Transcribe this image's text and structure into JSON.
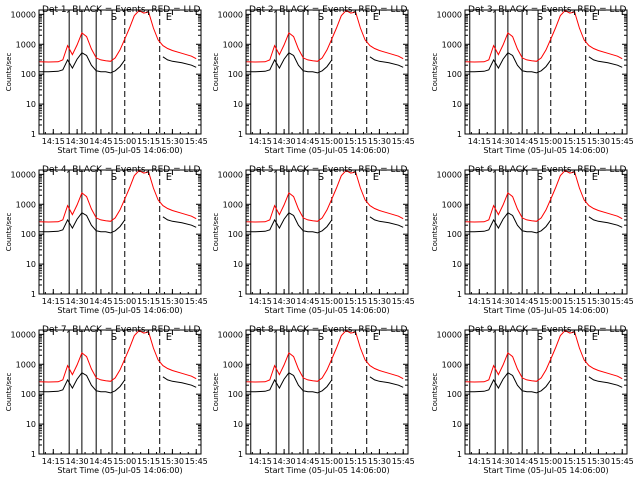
{
  "colors": {
    "background": "#ffffff",
    "events": "#000000",
    "lld": "#ff0000",
    "axes": "#000000"
  },
  "layout": {
    "rows": 3,
    "cols": 3
  },
  "panel_titles": [
    "Det 1, BLACK = Events, RED = LLD",
    "Det 2, BLACK = Events, RED = LLD",
    "Det 3, BLACK = Events, RED = LLD",
    "Det 4, BLACK = Events, RED = LLD",
    "Det 5, BLACK = Events, RED = LLD",
    "Det 6, BLACK = Events, RED = LLD",
    "Det 7, BLACK = Events, RED = LLD",
    "Det 8, BLACK = Events, RED = LLD",
    "Det 9, BLACK = Events, RED = LLD"
  ],
  "xlabel": "Start Time (05-Jul-05 14:06:00)",
  "ylabel": "Counts/sec",
  "x_tick_labels": [
    "14:15",
    "14:30",
    "14:45",
    "15:00",
    "15:15",
    "15:30",
    "15:45"
  ],
  "y_tick_labels": [
    "1",
    "10",
    "100",
    "1000",
    "10000"
  ],
  "markers": {
    "s": "S",
    "e": "E"
  },
  "chart_data": {
    "type": "line",
    "y_scale": "log",
    "xlim": [
      "14:06",
      "15:48"
    ],
    "ylim": [
      1,
      14000
    ],
    "grid": false,
    "solid_vlines": [
      "14:09",
      "14:25",
      "14:33",
      "14:42",
      "14:52"
    ],
    "dashed_vlines": [
      "15:00",
      "15:22"
    ],
    "x": [
      "14:06",
      "14:12",
      "14:18",
      "14:21",
      "14:24",
      "14:27",
      "14:30",
      "14:33",
      "14:36",
      "14:39",
      "14:42",
      "14:45",
      "14:48",
      "14:51",
      "14:54",
      "14:57",
      "15:00",
      "15:03",
      "15:06",
      "15:09",
      "15:12",
      "15:15",
      "15:18",
      "15:21",
      "15:24",
      "15:27",
      "15:30",
      "15:36",
      "15:42",
      "15:45"
    ],
    "series": [
      {
        "name": "Events",
        "values": [
          120,
          120,
          125,
          140,
          300,
          160,
          320,
          520,
          420,
          200,
          130,
          120,
          120,
          110,
          130,
          180,
          300,
          null,
          null,
          null,
          null,
          null,
          null,
          null,
          380,
          300,
          270,
          240,
          200,
          170
        ]
      },
      {
        "name": "LLD",
        "values": [
          260,
          255,
          260,
          300,
          900,
          450,
          950,
          2400,
          1800,
          700,
          350,
          300,
          280,
          270,
          350,
          650,
          1500,
          3500,
          9000,
          13500,
          11000,
          12000,
          3500,
          1400,
          900,
          720,
          620,
          500,
          400,
          330
        ]
      }
    ]
  }
}
